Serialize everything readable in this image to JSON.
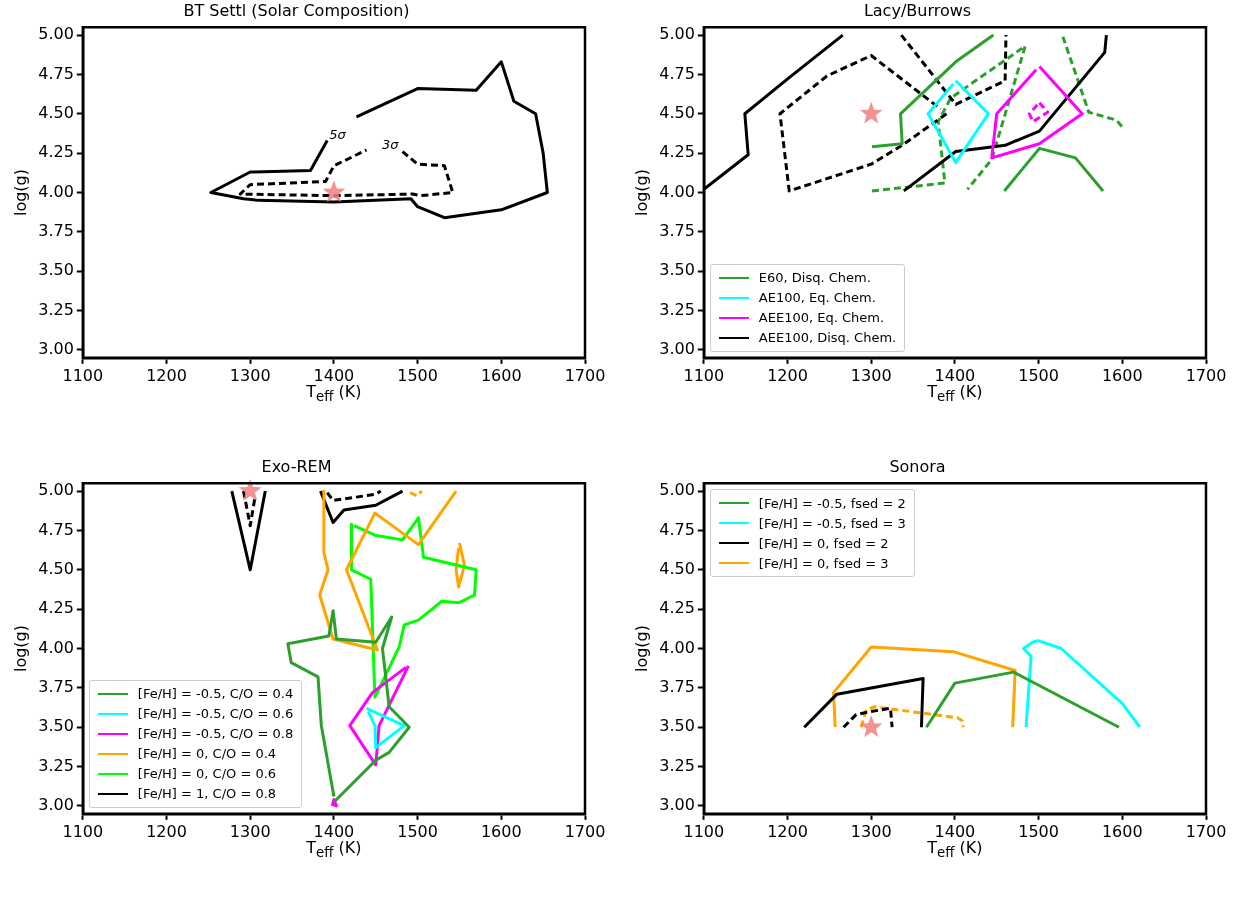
{
  "chart_data": [
    {
      "type": "line",
      "title": "BT Settl (Solar Composition)",
      "xlabel": "T$_{eff}$ (K)",
      "ylabel": "log(g)",
      "xlim": [
        1100,
        1700
      ],
      "ylim": [
        2.95,
        5.05
      ],
      "xticks": [
        1100,
        1200,
        1300,
        1400,
        1500,
        1600,
        1700
      ],
      "yticks": [
        {
          "value": 3,
          "label": "3.00"
        },
        {
          "value": 3.25,
          "label": "3.25"
        },
        {
          "value": 3.5,
          "label": "3.50"
        },
        {
          "value": 3.75,
          "label": "3.75"
        },
        {
          "value": 4,
          "label": "4.00"
        },
        {
          "value": 4.25,
          "label": "4.25"
        },
        {
          "value": 4.5,
          "label": "4.50"
        },
        {
          "value": 4.75,
          "label": "4.75"
        },
        {
          "value": 5,
          "label": "5.00"
        }
      ],
      "annotations": [
        "5σ",
        "3σ"
      ],
      "series": [
        {
          "type": "line",
          "color": "#000000",
          "line_style": "solid",
          "x": [
            1392,
            1372,
            1300,
            1253,
            1292,
            1310,
            1400,
            1492,
            1500,
            1532,
            1600,
            1655,
            1650,
            1641,
            1615,
            1600,
            1570,
            1500,
            1427
          ],
          "values": [
            4.33,
            4.14,
            4.13,
            4.0,
            3.96,
            3.95,
            3.94,
            3.96,
            3.91,
            3.84,
            3.89,
            4.0,
            4.25,
            4.5,
            4.58,
            4.83,
            4.65,
            4.66,
            4.48
          ]
        },
        {
          "type": "line",
          "color": "#000000",
          "line_style": "dashed",
          "x": [
            1482,
            1500,
            1532,
            1542,
            1504,
            1494,
            1400,
            1288,
            1300,
            1390,
            1400,
            1439
          ],
          "values": [
            4.26,
            4.18,
            4.17,
            4.0,
            3.98,
            3.99,
            3.98,
            3.99,
            4.05,
            4.07,
            4.17,
            4.27
          ]
        },
        {
          "type": "scatter",
          "marker": "star",
          "color": "#f08080",
          "x": [
            1400
          ],
          "values": [
            4.0
          ]
        }
      ]
    },
    {
      "type": "line",
      "title": "Lacy/Burrows",
      "xlabel": "T$_{eff}$ (K)",
      "ylabel": "log(g)",
      "xlim": [
        1100,
        1700
      ],
      "ylim": [
        2.95,
        5.05
      ],
      "xticks": [
        1100,
        1200,
        1300,
        1400,
        1500,
        1600,
        1700
      ],
      "yticks": [
        {
          "value": 3,
          "label": "3.00"
        },
        {
          "value": 3.25,
          "label": "3.25"
        },
        {
          "value": 3.5,
          "label": "3.50"
        },
        {
          "value": 3.75,
          "label": "3.75"
        },
        {
          "value": 4,
          "label": "4.00"
        },
        {
          "value": 4.25,
          "label": "4.25"
        },
        {
          "value": 4.5,
          "label": "4.50"
        },
        {
          "value": 4.75,
          "label": "4.75"
        },
        {
          "value": 5,
          "label": "5.00"
        }
      ],
      "legend": "bottom left",
      "series": [
        {
          "type": "line",
          "name": "E60, Disq. Chem.",
          "color": "#2ca02c",
          "line_style": "solid",
          "x": [
            1301,
            1337,
            1335,
            1401,
            1446
          ],
          "values": [
            4.29,
            4.31,
            4.5,
            4.83,
            5.0
          ]
        },
        {
          "type": "line",
          "name": "AE100, Eq. Chem.",
          "color": "#00ffff",
          "line_style": "solid",
          "x": [
            1401,
            1440,
            1401,
            1368,
            1398
          ],
          "values": [
            4.71,
            4.5,
            4.19,
            4.5,
            4.69
          ]
        },
        {
          "type": "line",
          "name": "AEE100, Eq. Chem.",
          "color": "#ff00ff",
          "line_style": "solid",
          "x": [
            1501,
            1552,
            1501,
            1444,
            1450,
            1497
          ],
          "values": [
            4.8,
            4.5,
            4.31,
            4.22,
            4.5,
            4.78
          ]
        },
        {
          "type": "line",
          "name": "AEE100, Disq. Chem.",
          "color": "#000000",
          "line_style": "solid",
          "x": [
            1339,
            1401,
            1460,
            1501,
            1579,
            1581
          ],
          "values": [
            4.01,
            4.26,
            4.3,
            4.39,
            4.89,
            5.0
          ]
        },
        {
          "type": "line",
          "color": "#2ca02c",
          "line_style": "solid",
          "x": [
            1459,
            1501,
            1544,
            1577
          ],
          "values": [
            4.01,
            4.28,
            4.22,
            4.01
          ]
        },
        {
          "type": "line",
          "color": "#000000",
          "line_style": "solid",
          "x": [
            1100,
            1153,
            1149,
            1202,
            1266
          ],
          "values": [
            4.02,
            4.24,
            4.5,
            4.73,
            5.0
          ]
        },
        {
          "type": "line",
          "color": "#000000",
          "line_style": "dashed",
          "x": [
            1390,
            1337,
            1300,
            1202,
            1191,
            1247,
            1300,
            1383
          ],
          "values": [
            4.5,
            4.3,
            4.18,
            4.01,
            4.5,
            4.74,
            4.87,
            4.53
          ]
        },
        {
          "type": "line",
          "color": "#000000",
          "line_style": "dashed",
          "x": [
            1336,
            1401,
            1460,
            1461
          ],
          "values": [
            5.0,
            4.56,
            4.71,
            5.0
          ]
        },
        {
          "type": "line",
          "color": "#2ca02c",
          "line_style": "dashed",
          "x": [
            1301,
            1388,
            1380,
            1395,
            1484,
            1444,
            1415
          ],
          "values": [
            4.01,
            4.06,
            4.45,
            4.6,
            4.93,
            4.21,
            4.02
          ]
        },
        {
          "type": "line",
          "color": "#2ca02c",
          "line_style": "dashed",
          "x": [
            1529,
            1560,
            1593,
            1601
          ],
          "values": [
            4.99,
            4.51,
            4.46,
            4.41
          ]
        },
        {
          "type": "line",
          "color": "#ff00ff",
          "line_style": "dashed",
          "x": [
            1501,
            1511,
            1493,
            1489,
            1499
          ],
          "values": [
            4.57,
            4.51,
            4.45,
            4.5,
            4.56
          ]
        },
        {
          "type": "scatter",
          "marker": "star",
          "color": "#f08080",
          "x": [
            1300
          ],
          "values": [
            4.5
          ]
        }
      ]
    },
    {
      "type": "line",
      "title": "Exo-REM",
      "xlabel": "T$_{eff}$ (K)",
      "ylabel": "log(g)",
      "xlim": [
        1100,
        1700
      ],
      "ylim": [
        2.95,
        5.05
      ],
      "xticks": [
        1100,
        1200,
        1300,
        1400,
        1500,
        1600,
        1700
      ],
      "yticks": [
        {
          "value": 3,
          "label": "3.00"
        },
        {
          "value": 3.25,
          "label": "3.25"
        },
        {
          "value": 3.5,
          "label": "3.50"
        },
        {
          "value": 3.75,
          "label": "3.75"
        },
        {
          "value": 4,
          "label": "4.00"
        },
        {
          "value": 4.25,
          "label": "4.25"
        },
        {
          "value": 4.5,
          "label": "4.50"
        },
        {
          "value": 4.75,
          "label": "4.75"
        },
        {
          "value": 5,
          "label": "5.00"
        }
      ],
      "legend": "bottom left",
      "series": [
        {
          "type": "line",
          "name": "[Fe/H] = -0.5, C/O = 0.4",
          "color": "#2ca02c",
          "line_style": "solid",
          "x": [
            1401,
            1450,
            1466,
            1490,
            1466,
            1458,
            1469,
            1450,
            1403,
            1399,
            1394,
            1345,
            1349,
            1381,
            1385,
            1400
          ],
          "values": [
            3.03,
            3.29,
            3.34,
            3.5,
            3.63,
            4.0,
            4.2,
            4.04,
            4.06,
            4.24,
            4.08,
            4.03,
            3.91,
            3.82,
            3.51,
            3.06
          ]
        },
        {
          "type": "line",
          "name": "[Fe/H] = -0.5, C/O = 0.6",
          "color": "#00ffff",
          "line_style": "solid",
          "x": [
            1439,
            1484,
            1450,
            1449,
            1441
          ],
          "values": [
            3.62,
            3.51,
            3.37,
            3.51,
            3.6
          ]
        },
        {
          "type": "line",
          "name": "[Fe/H] = -0.5, C/O = 0.8",
          "color": "#ff00ff",
          "line_style": "solid",
          "x": [
            1489,
            1454,
            1450,
            1419,
            1446,
            1486
          ],
          "values": [
            3.89,
            3.51,
            3.26,
            3.51,
            3.72,
            3.88
          ]
        },
        {
          "type": "line",
          "name": "[Fe/H] = 0, C/O = 0.4",
          "color": "#ffa500",
          "line_style": "solid",
          "x": [
            1388,
            1388,
            1393,
            1383,
            1399,
            1452,
            1415,
            1449,
            1501,
            1546
          ],
          "values": [
            5.0,
            4.61,
            4.5,
            4.34,
            4.06,
            3.99,
            4.5,
            4.86,
            4.66,
            5.0
          ]
        },
        {
          "type": "line",
          "name": "[Fe/H] = 0, C/O = 0.6",
          "color": "#00ff00",
          "line_style": "solid",
          "x": [
            1421,
            1421,
            1444,
            1449,
            1478,
            1484,
            1501,
            1529,
            1549,
            1568,
            1570,
            1507,
            1501,
            1482,
            1449,
            1424
          ],
          "values": [
            4.79,
            4.5,
            4.44,
            3.69,
            4.01,
            4.15,
            4.18,
            4.3,
            4.29,
            4.34,
            4.5,
            4.58,
            4.83,
            4.69,
            4.72,
            4.78
          ]
        },
        {
          "type": "line",
          "name": "[Fe/H] = 1, C/O = 0.8",
          "color": "#000000",
          "line_style": "solid",
          "x": [
            1278,
            1300,
            1318
          ],
          "values": [
            5.0,
            4.5,
            5.0
          ]
        },
        {
          "type": "line",
          "color": "#000000",
          "line_style": "solid",
          "x": [
            1384,
            1399,
            1412,
            1450,
            1482
          ],
          "values": [
            5.0,
            4.8,
            4.88,
            4.91,
            5.0
          ]
        },
        {
          "type": "line",
          "color": "#000000",
          "line_style": "dashed",
          "x": [
            1292,
            1300,
            1306
          ],
          "values": [
            5.0,
            4.78,
            4.97
          ]
        },
        {
          "type": "line",
          "color": "#000000",
          "line_style": "dashed",
          "x": [
            1392,
            1399,
            1450,
            1456
          ],
          "values": [
            4.99,
            4.94,
            4.98,
            5.0
          ]
        },
        {
          "type": "line",
          "color": "#ffa500",
          "line_style": "dashed",
          "x": [
            1491,
            1499,
            1505
          ],
          "values": [
            4.99,
            4.97,
            5.0
          ]
        },
        {
          "type": "line",
          "color": "#ffa500",
          "line_style": "solid",
          "x": [
            1550,
            1556,
            1549,
            1546,
            1549
          ],
          "values": [
            4.67,
            4.53,
            4.39,
            4.5,
            4.64
          ]
        },
        {
          "type": "line",
          "color": "#ff00ff",
          "line_style": "solid",
          "x": [
            1398,
            1400,
            1403,
            1399
          ],
          "values": [
            3.0,
            3.04,
            3.0,
            3.01
          ]
        },
        {
          "type": "scatter",
          "marker": "star",
          "color": "#f08080",
          "x": [
            1300
          ],
          "values": [
            5.0
          ]
        }
      ]
    },
    {
      "type": "line",
      "title": "Sonora",
      "xlabel": "T$_{eff}$ (K)",
      "ylabel": "log(g)",
      "xlim": [
        1100,
        1700
      ],
      "ylim": [
        2.95,
        5.05
      ],
      "xticks": [
        1100,
        1200,
        1300,
        1400,
        1500,
        1600,
        1700
      ],
      "yticks": [
        {
          "value": 3,
          "label": "3.00"
        },
        {
          "value": 3.25,
          "label": "3.25"
        },
        {
          "value": 3.5,
          "label": "3.50"
        },
        {
          "value": 3.75,
          "label": "3.75"
        },
        {
          "value": 4,
          "label": "4.00"
        },
        {
          "value": 4.25,
          "label": "4.25"
        },
        {
          "value": 4.5,
          "label": "4.50"
        },
        {
          "value": 4.75,
          "label": "4.75"
        },
        {
          "value": 5,
          "label": "5.00"
        }
      ],
      "legend": "top left",
      "series": [
        {
          "type": "line",
          "name": "[Fe/H] = -0.5, fsed = 2",
          "color": "#2ca02c",
          "line_style": "solid",
          "x": [
            1366,
            1400,
            1470,
            1596
          ],
          "values": [
            3.5,
            3.78,
            3.85,
            3.5
          ]
        },
        {
          "type": "line",
          "name": "[Fe/H] = -0.5, fsed = 3",
          "color": "#00ffff",
          "line_style": "solid",
          "x": [
            1485,
            1491,
            1482,
            1493,
            1499,
            1505,
            1527,
            1600,
            1621
          ],
          "values": [
            3.5,
            3.95,
            4.0,
            4.04,
            4.05,
            4.04,
            4.0,
            3.65,
            3.5
          ]
        },
        {
          "type": "line",
          "name": "[Fe/H] = 0, fsed = 2",
          "color": "#000000",
          "line_style": "solid",
          "x": [
            1220,
            1259,
            1362,
            1360
          ],
          "values": [
            3.5,
            3.71,
            3.81,
            3.5
          ]
        },
        {
          "type": "line",
          "name": "[Fe/H] = 0, fsed = 3",
          "color": "#ffa500",
          "line_style": "solid",
          "x": [
            1257,
            1255,
            1300,
            1398,
            1472,
            1469
          ],
          "values": [
            3.5,
            3.72,
            4.01,
            3.98,
            3.86,
            3.5
          ]
        },
        {
          "type": "line",
          "color": "#000000",
          "line_style": "dashed",
          "x": [
            1267,
            1282,
            1300,
            1323,
            1325
          ],
          "values": [
            3.5,
            3.58,
            3.6,
            3.62,
            3.5
          ]
        },
        {
          "type": "line",
          "color": "#ffa500",
          "line_style": "dashed",
          "x": [
            1288,
            1294,
            1304,
            1403,
            1409,
            1410
          ],
          "values": [
            3.5,
            3.61,
            3.63,
            3.56,
            3.54,
            3.5
          ]
        },
        {
          "type": "scatter",
          "marker": "star",
          "color": "#f08080",
          "x": [
            1300
          ],
          "values": [
            3.5
          ]
        }
      ]
    }
  ]
}
